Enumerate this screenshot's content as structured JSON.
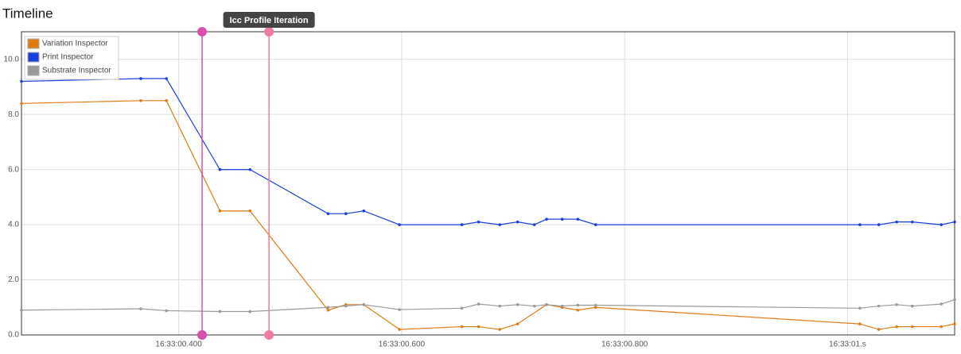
{
  "chart_data": {
    "type": "line",
    "title": "Timeline",
    "xlim": [
      0.259,
      1.096
    ],
    "xticks": [
      {
        "value": 0.4,
        "label": "16:33:00.400"
      },
      {
        "value": 0.6,
        "label": "16:33:00.600"
      },
      {
        "value": 0.8,
        "label": "16:33:00.800"
      },
      {
        "value": 1.0,
        "label": "16:33:01.s"
      }
    ],
    "ylim": [
      0,
      11
    ],
    "yticks": [
      {
        "value": 0,
        "label": "0.0"
      },
      {
        "value": 2,
        "label": "2.0"
      },
      {
        "value": 4,
        "label": "4.0"
      },
      {
        "value": 6,
        "label": "6.0"
      },
      {
        "value": 8,
        "label": "8.0"
      },
      {
        "value": 10,
        "label": "10.0"
      }
    ],
    "grid": true,
    "legend": "top-left",
    "markers": [
      {
        "x": 0.421,
        "color": "#d94fb0"
      },
      {
        "x": 0.481,
        "color": "#f07aa0",
        "label": "Icc Profile Iteration"
      }
    ],
    "series": [
      {
        "name": "Variation Inspector",
        "color": "#e07b10",
        "x": [
          0.259,
          0.366,
          0.389,
          0.437,
          0.464,
          0.534,
          0.55,
          0.566,
          0.598,
          0.654,
          0.669,
          0.688,
          0.704,
          0.73,
          0.744,
          0.758,
          0.774,
          1.011,
          1.028,
          1.044,
          1.058,
          1.084,
          1.096
        ],
        "values": [
          8.4,
          8.5,
          8.5,
          4.5,
          4.5,
          0.9,
          1.1,
          1.1,
          0.2,
          0.3,
          0.3,
          0.2,
          0.4,
          1.1,
          1.0,
          0.9,
          1.0,
          0.4,
          0.2,
          0.3,
          0.3,
          0.3,
          0.4
        ]
      },
      {
        "name": "Print Inspector",
        "color": "#1a3fe0",
        "x": [
          0.259,
          0.366,
          0.389,
          0.437,
          0.464,
          0.534,
          0.55,
          0.566,
          0.598,
          0.654,
          0.669,
          0.688,
          0.704,
          0.719,
          0.73,
          0.744,
          0.758,
          0.774,
          1.011,
          1.028,
          1.044,
          1.058,
          1.084,
          1.096
        ],
        "values": [
          9.2,
          9.3,
          9.3,
          6.0,
          6.0,
          4.4,
          4.4,
          4.5,
          4.0,
          4.0,
          4.1,
          4.0,
          4.1,
          4.0,
          4.2,
          4.2,
          4.2,
          4.0,
          4.0,
          4.0,
          4.1,
          4.1,
          4.0,
          4.1
        ]
      },
      {
        "name": "Substrate Inspector",
        "color": "#999999",
        "x": [
          0.259,
          0.366,
          0.389,
          0.437,
          0.464,
          0.534,
          0.55,
          0.566,
          0.598,
          0.654,
          0.669,
          0.688,
          0.704,
          0.719,
          0.73,
          0.744,
          0.758,
          0.774,
          1.011,
          1.028,
          1.044,
          1.058,
          1.084,
          1.096
        ],
        "values": [
          0.9,
          0.95,
          0.88,
          0.85,
          0.85,
          1.0,
          1.05,
          1.1,
          0.92,
          0.97,
          1.12,
          1.05,
          1.1,
          1.05,
          1.1,
          1.05,
          1.08,
          1.08,
          0.97,
          1.05,
          1.1,
          1.05,
          1.12,
          1.28
        ]
      }
    ]
  }
}
